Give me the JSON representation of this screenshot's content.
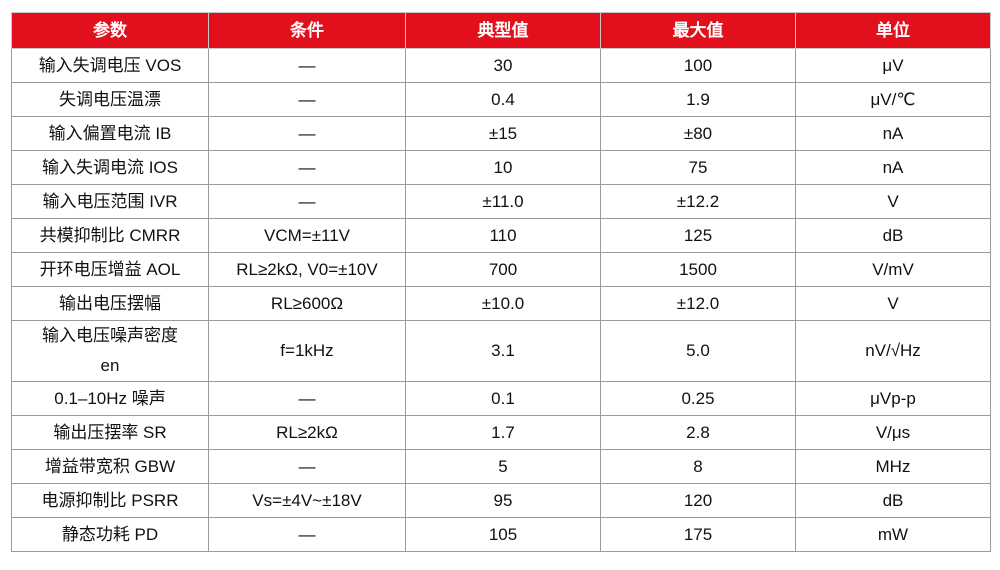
{
  "table": {
    "header": [
      "参数",
      "条件",
      "典型值",
      "最大值",
      "单位"
    ],
    "rows": [
      [
        "输入失调电压 VOS",
        "—",
        "30",
        "100",
        "μV"
      ],
      [
        "失调电压温漂",
        "—",
        "0.4",
        "1.9",
        "μV/℃"
      ],
      [
        "输入偏置电流 IB",
        "—",
        "±15",
        "±80",
        "nA"
      ],
      [
        "输入失调电流 IOS",
        "—",
        "10",
        "75",
        "nA"
      ],
      [
        "输入电压范围 IVR",
        "—",
        "±11.0",
        "±12.2",
        "V"
      ],
      [
        "共模抑制比 CMRR",
        "VCM=±11V",
        "110",
        "125",
        "dB"
      ],
      [
        "开环电压增益 AOL",
        "RL≥2kΩ, V0=±10V",
        "700",
        "1500",
        "V/mV"
      ],
      [
        "输出电压摆幅",
        "RL≥600Ω",
        "±10.0",
        "±12.0",
        "V"
      ],
      [
        "输入电压噪声密度\nen",
        "f=1kHz",
        "3.1",
        "5.0",
        "nV/√Hz"
      ],
      [
        "0.1–10Hz 噪声",
        "—",
        "0.1",
        "0.25",
        "μVp-p"
      ],
      [
        "输出压摆率 SR",
        "RL≥2kΩ",
        "1.7",
        "2.8",
        "V/μs"
      ],
      [
        "增益带宽积 GBW",
        "—",
        "5",
        "8",
        "MHz"
      ],
      [
        "电源抑制比 PSRR",
        "Vs=±4V~±18V",
        "95",
        "120",
        "dB"
      ],
      [
        "静态功耗 PD",
        "—",
        "105",
        "175",
        "mW"
      ]
    ]
  }
}
